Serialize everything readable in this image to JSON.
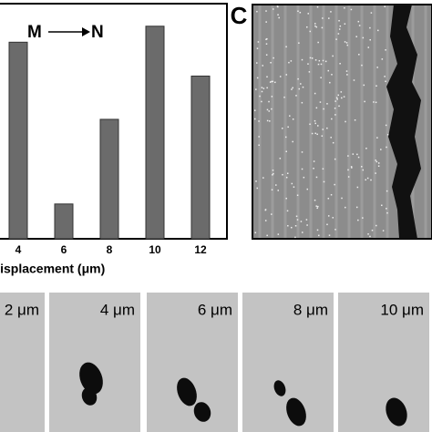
{
  "chart_data": {
    "type": "bar",
    "x_label": "Displacement (μm)",
    "annotation": {
      "from": "M",
      "to": "N"
    },
    "categories": [
      "4",
      "6",
      "8",
      "10",
      "12"
    ],
    "values": [
      209,
      37,
      127,
      226,
      173
    ],
    "color": "#6b6b6b",
    "ylim": [
      0,
      250
    ]
  },
  "panel_c": {
    "label": "C"
  },
  "frames": [
    "2 μm",
    "4 μm",
    "6 μm",
    "8 μm",
    "10 μm"
  ]
}
